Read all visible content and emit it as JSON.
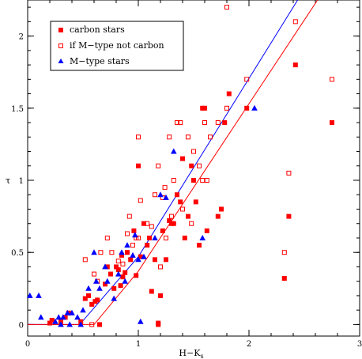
{
  "chart_data": {
    "type": "scatter",
    "xlabel": "H−K",
    "xlabel_sub": "s",
    "ylabel": "τ",
    "xlim": [
      0,
      3
    ],
    "ylim": [
      -0.08,
      2.25
    ],
    "xticks": [
      0,
      1,
      2,
      3
    ],
    "xtick_labels": [
      "0",
      "1",
      "2",
      "3"
    ],
    "yticks": [
      0,
      0.5,
      1,
      1.5,
      2
    ],
    "ytick_labels": [
      "0",
      "0.5",
      "1",
      "1.5",
      "2"
    ],
    "grid": false,
    "legend_position": "top-left",
    "series": [
      {
        "name": "carbon stars",
        "marker": "filled-square",
        "color": "#ff0000",
        "points": [
          [
            0.2,
            0.01
          ],
          [
            0.22,
            0.03
          ],
          [
            0.3,
            0.02
          ],
          [
            0.34,
            0.05
          ],
          [
            0.37,
            0.08
          ],
          [
            0.48,
            0.02
          ],
          [
            0.52,
            0.18
          ],
          [
            0.55,
            0.2
          ],
          [
            0.58,
            0.14
          ],
          [
            0.61,
            0.16
          ],
          [
            0.63,
            0.17
          ],
          [
            0.65,
            0.0
          ],
          [
            0.7,
            0.28
          ],
          [
            0.72,
            0.4
          ],
          [
            0.75,
            0.35
          ],
          [
            0.78,
            0.25
          ],
          [
            0.8,
            0.4
          ],
          [
            0.82,
            0.38
          ],
          [
            0.84,
            0.27
          ],
          [
            0.85,
            0.48
          ],
          [
            0.86,
            0.33
          ],
          [
            0.88,
            0.36
          ],
          [
            0.9,
            0.5
          ],
          [
            0.93,
            0.45
          ],
          [
            0.96,
            0.65
          ],
          [
            0.98,
            0.34
          ],
          [
            1.0,
            1.1
          ],
          [
            1.02,
            0.47
          ],
          [
            1.05,
            0.7
          ],
          [
            1.08,
            0.55
          ],
          [
            1.1,
            0.6
          ],
          [
            1.12,
            0.23
          ],
          [
            1.15,
            0.45
          ],
          [
            1.18,
            0.0
          ],
          [
            1.18,
            0.01
          ],
          [
            1.2,
            0.2
          ],
          [
            1.22,
            0.65
          ],
          [
            1.25,
            0.45
          ],
          [
            1.28,
            0.72
          ],
          [
            1.3,
            0.7
          ],
          [
            1.32,
            0.7
          ],
          [
            1.35,
            0.9
          ],
          [
            1.38,
            0.85
          ],
          [
            1.4,
            1.15
          ],
          [
            1.42,
            0.6
          ],
          [
            1.45,
            0.75
          ],
          [
            1.48,
            1.1
          ],
          [
            1.5,
            1.0
          ],
          [
            1.52,
            0.85
          ],
          [
            1.55,
            0.55
          ],
          [
            1.58,
            1.5
          ],
          [
            1.6,
            1.5
          ],
          [
            1.62,
            0.65
          ],
          [
            1.72,
            0.75
          ],
          [
            1.75,
            0.8
          ],
          [
            1.78,
            1.4
          ],
          [
            1.82,
            1.6
          ],
          [
            1.98,
            1.5
          ],
          [
            2.32,
            0.32
          ],
          [
            2.36,
            0.75
          ],
          [
            2.42,
            1.8
          ],
          [
            2.75,
            1.4
          ]
        ]
      },
      {
        "name": "if M−type not carbon",
        "marker": "open-square",
        "color": "#ff0000",
        "points": [
          [
            0.22,
            0.02
          ],
          [
            0.52,
            0.45
          ],
          [
            0.58,
            0.0
          ],
          [
            0.6,
            0.35
          ],
          [
            0.63,
            0.3
          ],
          [
            0.66,
            0.5
          ],
          [
            0.72,
            0.6
          ],
          [
            0.76,
            0.5
          ],
          [
            0.82,
            0.44
          ],
          [
            0.86,
            0.42
          ],
          [
            0.9,
            0.63
          ],
          [
            0.92,
            0.75
          ],
          [
            0.95,
            0.55
          ],
          [
            0.98,
            0.6
          ],
          [
            1.0,
            0.6
          ],
          [
            1.02,
            0.86
          ],
          [
            1.0,
            1.3
          ],
          [
            1.08,
            0.7
          ],
          [
            1.12,
            0.68
          ],
          [
            1.15,
            0.9
          ],
          [
            1.18,
            1.1
          ],
          [
            1.2,
            0.4
          ],
          [
            1.22,
            0.88
          ],
          [
            1.24,
            0.95
          ],
          [
            1.25,
            0.6
          ],
          [
            1.28,
            1.3
          ],
          [
            1.3,
            0.75
          ],
          [
            1.32,
            1.0
          ],
          [
            1.35,
            1.4
          ],
          [
            1.38,
            1.4
          ],
          [
            1.4,
            0.8
          ],
          [
            1.45,
            1.3
          ],
          [
            1.48,
            0.7
          ],
          [
            1.5,
            1.2
          ],
          [
            1.55,
            1.1
          ],
          [
            1.58,
            1.0
          ],
          [
            1.6,
            1.4
          ],
          [
            1.62,
            1.0
          ],
          [
            1.65,
            1.3
          ],
          [
            1.72,
            1.4
          ],
          [
            1.8,
            1.5
          ],
          [
            1.8,
            2.2
          ],
          [
            1.98,
            1.7
          ],
          [
            2.32,
            0.5
          ],
          [
            2.36,
            1.05
          ],
          [
            2.42,
            2.1
          ],
          [
            2.75,
            1.7
          ]
        ]
      },
      {
        "name": "M−type stars",
        "marker": "filled-triangle",
        "color": "#0000ff",
        "points": [
          [
            0.02,
            0.2
          ],
          [
            0.1,
            0.2
          ],
          [
            0.12,
            0.05
          ],
          [
            0.25,
            0.02
          ],
          [
            0.28,
            0.05
          ],
          [
            0.3,
            0.0
          ],
          [
            0.32,
            0.05
          ],
          [
            0.36,
            0.08
          ],
          [
            0.38,
            0.0
          ],
          [
            0.4,
            0.08
          ],
          [
            0.45,
            0.05
          ],
          [
            0.48,
            0.0
          ],
          [
            0.5,
            0.1
          ],
          [
            0.55,
            0.25
          ],
          [
            0.6,
            0.5
          ],
          [
            0.62,
            0.3
          ],
          [
            0.65,
            0.25
          ],
          [
            0.7,
            0.4
          ],
          [
            0.72,
            0.3
          ],
          [
            0.78,
            0.18
          ],
          [
            0.82,
            0.35
          ],
          [
            0.85,
            0.5
          ],
          [
            0.88,
            0.3
          ],
          [
            0.9,
            0.55
          ],
          [
            0.95,
            0.48
          ],
          [
            0.97,
            0.62
          ],
          [
            1.0,
            0.45
          ],
          [
            1.02,
            0.02
          ],
          [
            1.05,
            0.47
          ],
          [
            1.15,
            0.6
          ],
          [
            1.2,
            0.9
          ],
          [
            1.25,
            0.88
          ],
          [
            1.32,
            1.2
          ],
          [
            1.58,
            0.6
          ],
          [
            2.05,
            1.5
          ]
        ]
      }
    ],
    "lines": [
      {
        "color": "#0000ff",
        "points": [
          [
            0.0,
            0.0
          ],
          [
            0.47,
            0.0
          ],
          [
            1.0,
            0.47
          ],
          [
            2.44,
            2.25
          ]
        ]
      },
      {
        "color": "#ff0000",
        "points": [
          [
            0.0,
            0.0
          ],
          [
            0.6,
            0.0
          ],
          [
            1.0,
            0.37
          ],
          [
            2.62,
            2.25
          ]
        ]
      }
    ]
  }
}
